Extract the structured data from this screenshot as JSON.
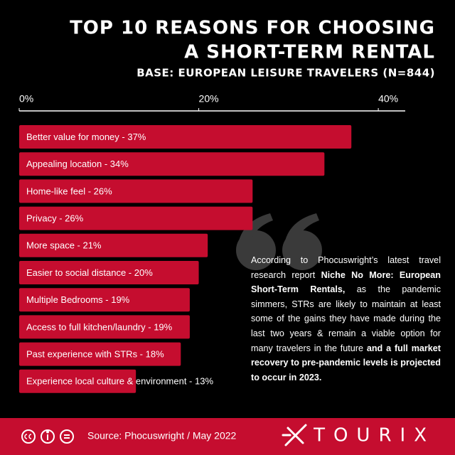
{
  "chart_data": {
    "type": "bar",
    "orientation": "horizontal",
    "title_lines": [
      "TOP 10 REASONS FOR CHOOSING",
      "A SHORT-TERM RENTAL"
    ],
    "subtitle": "BASE: EUROPEAN LEISURE TRAVELERS (N=844)",
    "categories": [
      "Better value for money - 37%",
      "Appealing location - 34%",
      "Home-like feel - 26%",
      "Privacy - 26%",
      "More space - 21%",
      "Easier to social distance - 20%",
      "Multiple Bedrooms - 19%",
      "Access to full kitchen/laundry - 19%",
      "Past experience with STRs - 18%",
      "Experience local culture & environment - 13%"
    ],
    "values": [
      37,
      34,
      26,
      26,
      21,
      20,
      19,
      19,
      18,
      13
    ],
    "color": "#c50d2f",
    "xlim": [
      0,
      43
    ],
    "xticks": [
      {
        "value": 0,
        "label": "0%"
      },
      {
        "value": 20,
        "label": "20%"
      },
      {
        "value": 40,
        "label": "40%"
      }
    ],
    "quote": [
      {
        "text": "According to Phocuswright’s latest travel research report ",
        "bold": false
      },
      {
        "text": "Niche No More: European Short-Term Rentals,",
        "bold": true
      },
      {
        "text": " as the pandemic simmers, STRs are likely to maintain at least some of the gains they have made during the last two years & remain a viable option for many travelers in the future ",
        "bold": false
      },
      {
        "text": "and a full market recovery to pre-pandemic levels is projected to occur in 2023.",
        "bold": true
      }
    ],
    "source": "Source: Phocuswright / May 2022",
    "brand": "TOURIX"
  }
}
